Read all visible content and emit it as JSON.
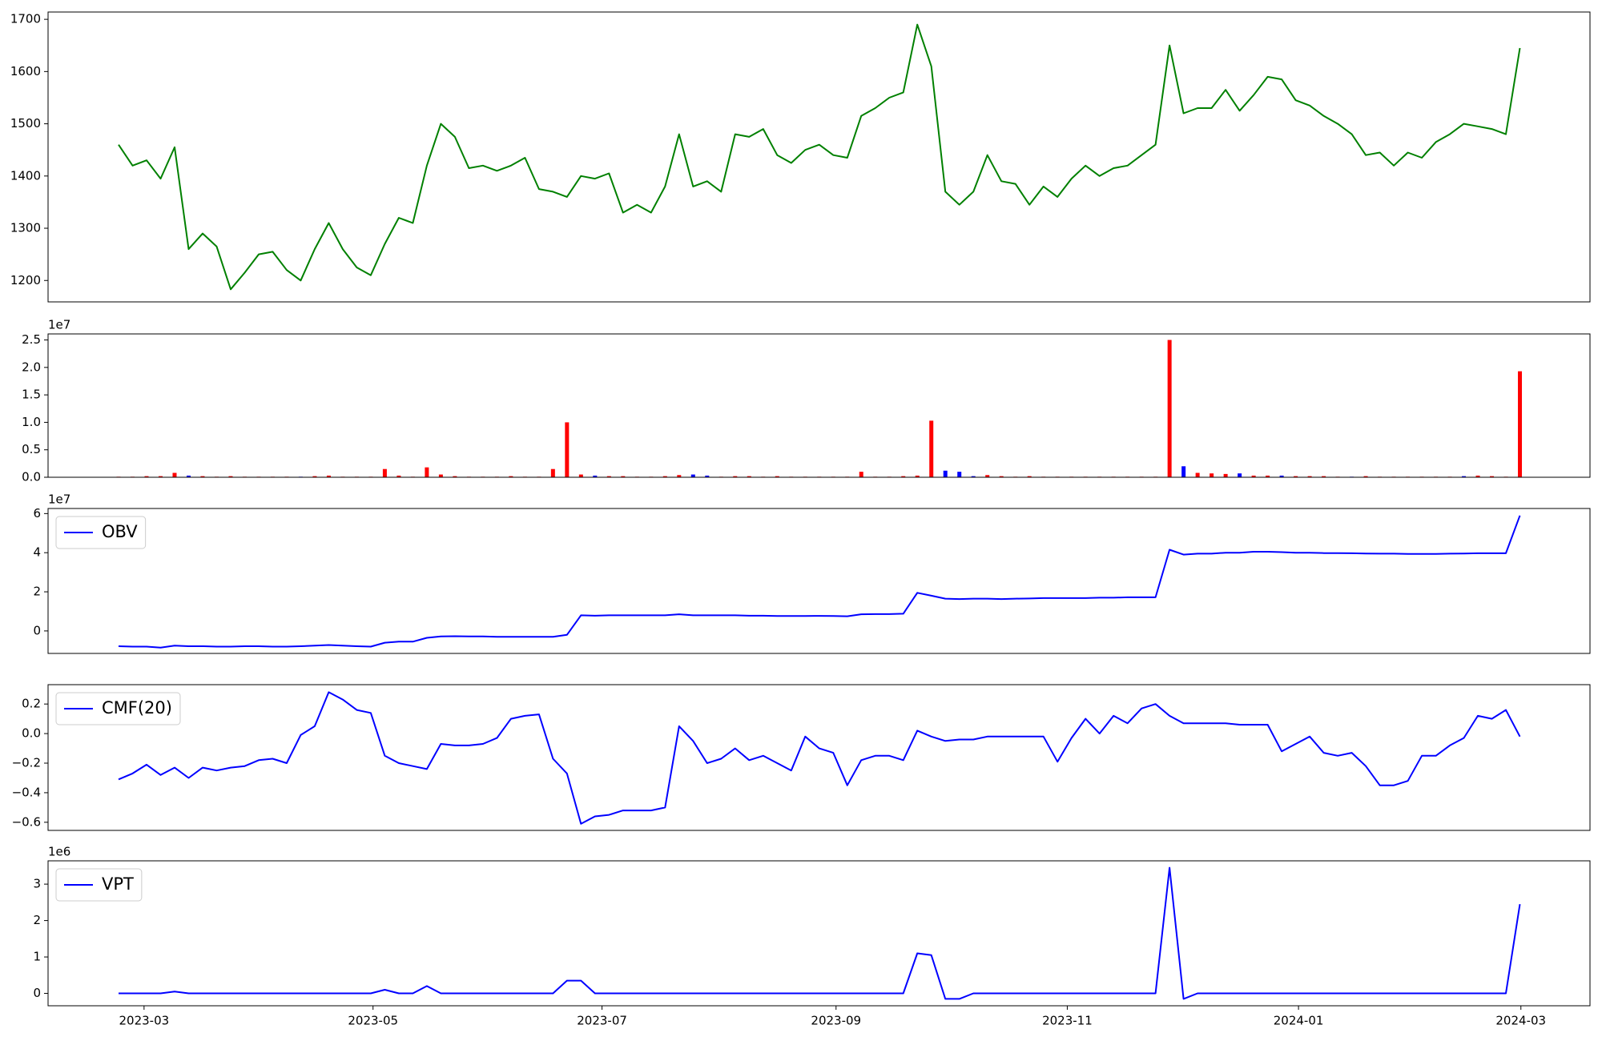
{
  "chart_data": [
    {
      "type": "line",
      "xlim": [
        -5.03,
        105.0
      ],
      "ylim": [
        1159,
        1714
      ],
      "yticks": [
        1200,
        1300,
        1400,
        1500,
        1600,
        1700
      ],
      "series": [
        {
          "color": "#008000",
          "values": [
            1460,
            1420,
            1430,
            1395,
            1455,
            1260,
            1290,
            1265,
            1183,
            1215,
            1250,
            1255,
            1220,
            1200,
            1260,
            1310,
            1260,
            1225,
            1210,
            1270,
            1320,
            1310,
            1420,
            1500,
            1475,
            1415,
            1420,
            1410,
            1420,
            1435,
            1375,
            1370,
            1360,
            1400,
            1395,
            1405,
            1330,
            1345,
            1330,
            1380,
            1480,
            1380,
            1390,
            1370,
            1480,
            1475,
            1490,
            1440,
            1425,
            1450,
            1460,
            1440,
            1435,
            1515,
            1530,
            1550,
            1560,
            1690,
            1610,
            1370,
            1345,
            1370,
            1440,
            1390,
            1385,
            1345,
            1380,
            1360,
            1395,
            1420,
            1400,
            1415,
            1420,
            1440,
            1460,
            1650,
            1520,
            1530,
            1530,
            1565,
            1525,
            1555,
            1590,
            1585,
            1545,
            1535,
            1515,
            1500,
            1480,
            1440,
            1445,
            1420,
            1445,
            1435,
            1465,
            1480,
            1500,
            1495,
            1490,
            1480,
            1645
          ]
        }
      ]
    },
    {
      "type": "bar",
      "xlim": [
        -5.03,
        105.0
      ],
      "ylim": [
        0,
        2.61
      ],
      "offset_label": "1e7",
      "yticks": [
        {
          "value": 0,
          "label": "0.0"
        },
        {
          "value": 0.5,
          "label": "0.5"
        },
        {
          "value": 1,
          "label": "1.0"
        },
        {
          "value": 1.5,
          "label": "1.5"
        },
        {
          "value": 2,
          "label": "2.0"
        },
        {
          "value": 2.5,
          "label": "2.5"
        }
      ],
      "values": [
        0.01,
        0.01,
        0.02,
        0.02,
        0.08,
        0.03,
        0.02,
        0.01,
        0.02,
        0.01,
        0.01,
        0.01,
        0.01,
        0.01,
        0.02,
        0.03,
        0.01,
        0.01,
        0.01,
        0.15,
        0.03,
        0.01,
        0.18,
        0.05,
        0.02,
        0.01,
        0.01,
        0.01,
        0.02,
        0.01,
        0.01,
        0.15,
        1.0,
        0.05,
        0.03,
        0.02,
        0.02,
        0.01,
        0.01,
        0.02,
        0.04,
        0.05,
        0.03,
        0.01,
        0.02,
        0.02,
        0.01,
        0.02,
        0.01,
        0.01,
        0.01,
        0.01,
        0.01,
        0.1,
        0.01,
        0.01,
        0.02,
        0.03,
        1.03,
        0.12,
        0.1,
        0.02,
        0.04,
        0.02,
        0.01,
        0.02,
        0.01,
        0.01,
        0.01,
        0.01,
        0.01,
        0.01,
        0.01,
        0.01,
        0.01,
        2.5,
        0.2,
        0.08,
        0.07,
        0.06,
        0.07,
        0.03,
        0.03,
        0.03,
        0.02,
        0.02,
        0.02,
        0.01,
        0.01,
        0.02,
        0.01,
        0.01,
        0.01,
        0.01,
        0.01,
        0.01,
        0.02,
        0.03,
        0.02,
        0.01,
        1.93
      ],
      "colors": [
        "red",
        "red",
        "red",
        "red",
        "red",
        "blue",
        "red",
        "red",
        "red",
        "red",
        "red",
        "red",
        "red",
        "blue",
        "red",
        "red",
        "red",
        "red",
        "red",
        "red",
        "red",
        "red",
        "red",
        "red",
        "red",
        "red",
        "red",
        "red",
        "red",
        "red",
        "red",
        "red",
        "red",
        "red",
        "blue",
        "red",
        "red",
        "red",
        "red",
        "red",
        "red",
        "blue",
        "blue",
        "red",
        "red",
        "red",
        "red",
        "red",
        "red",
        "red",
        "red",
        "red",
        "red",
        "red",
        "red",
        "red",
        "red",
        "red",
        "red",
        "blue",
        "blue",
        "blue",
        "red",
        "red",
        "red",
        "red",
        "red",
        "red",
        "red",
        "red",
        "red",
        "red",
        "red",
        "red",
        "red",
        "red",
        "blue",
        "red",
        "red",
        "red",
        "blue",
        "red",
        "red",
        "blue",
        "red",
        "red",
        "red",
        "red",
        "blue",
        "red",
        "red",
        "red",
        "red",
        "red",
        "red",
        "red",
        "blue",
        "red",
        "red",
        "red",
        "red"
      ]
    },
    {
      "type": "line",
      "xlim": [
        -5.03,
        105.0
      ],
      "ylim": [
        -1.15,
        6.26
      ],
      "offset_label": "1e7",
      "yticks": [
        0,
        2,
        4,
        6
      ],
      "series": [
        {
          "name": "OBV",
          "color": "#0000ff",
          "values": [
            -0.78,
            -0.8,
            -0.8,
            -0.85,
            -0.75,
            -0.78,
            -0.78,
            -0.8,
            -0.8,
            -0.78,
            -0.78,
            -0.8,
            -0.8,
            -0.78,
            -0.75,
            -0.72,
            -0.75,
            -0.78,
            -0.8,
            -0.6,
            -0.55,
            -0.55,
            -0.35,
            -0.28,
            -0.27,
            -0.28,
            -0.28,
            -0.3,
            -0.3,
            -0.3,
            -0.3,
            -0.3,
            -0.2,
            0.8,
            0.78,
            0.8,
            0.8,
            0.8,
            0.8,
            0.8,
            0.85,
            0.8,
            0.8,
            0.8,
            0.8,
            0.78,
            0.78,
            0.76,
            0.76,
            0.76,
            0.77,
            0.76,
            0.75,
            0.85,
            0.86,
            0.86,
            0.88,
            1.95,
            1.8,
            1.65,
            1.63,
            1.65,
            1.65,
            1.63,
            1.65,
            1.66,
            1.68,
            1.68,
            1.68,
            1.68,
            1.7,
            1.7,
            1.72,
            1.72,
            1.72,
            4.15,
            3.9,
            3.95,
            3.95,
            4.0,
            4.0,
            4.05,
            4.05,
            4.03,
            4.0,
            4.0,
            3.98,
            3.98,
            3.97,
            3.96,
            3.95,
            3.95,
            3.94,
            3.94,
            3.94,
            3.95,
            3.96,
            3.97,
            3.97,
            3.97,
            5.9
          ]
        }
      ]
    },
    {
      "type": "line",
      "xlim": [
        -5.03,
        105.0
      ],
      "ylim": [
        -0.655,
        0.331
      ],
      "yticks": [
        {
          "value": -0.6,
          "label": "−0.6"
        },
        {
          "value": -0.4,
          "label": "−0.4"
        },
        {
          "value": -0.2,
          "label": "−0.2"
        },
        {
          "value": 0,
          "label": "0.0"
        },
        0.2
      ],
      "series": [
        {
          "name": "CMF(20)",
          "color": "#0000ff",
          "values": [
            -0.31,
            -0.27,
            -0.21,
            -0.28,
            -0.23,
            -0.3,
            -0.23,
            -0.25,
            -0.23,
            -0.22,
            -0.18,
            -0.17,
            -0.2,
            -0.01,
            0.05,
            0.28,
            0.23,
            0.16,
            0.14,
            -0.15,
            -0.2,
            -0.22,
            -0.24,
            -0.07,
            -0.08,
            -0.08,
            -0.07,
            -0.03,
            0.1,
            0.12,
            0.13,
            -0.17,
            -0.27,
            -0.61,
            -0.56,
            -0.55,
            -0.52,
            -0.52,
            -0.52,
            -0.5,
            0.05,
            -0.05,
            -0.2,
            -0.17,
            -0.1,
            -0.18,
            -0.15,
            -0.2,
            -0.25,
            -0.02,
            -0.1,
            -0.13,
            -0.35,
            -0.18,
            -0.15,
            -0.15,
            -0.18,
            0.02,
            -0.02,
            -0.05,
            -0.04,
            -0.04,
            -0.02,
            -0.02,
            -0.02,
            -0.02,
            -0.02,
            -0.19,
            -0.03,
            0.1,
            0.0,
            0.12,
            0.07,
            0.17,
            0.2,
            0.12,
            0.07,
            0.07,
            0.07,
            0.07,
            0.06,
            0.06,
            0.06,
            -0.12,
            -0.07,
            -0.02,
            -0.13,
            -0.15,
            -0.13,
            -0.22,
            -0.35,
            -0.35,
            -0.32,
            -0.15,
            -0.15,
            -0.08,
            -0.03,
            0.12,
            0.1,
            0.16,
            -0.02
          ]
        }
      ]
    },
    {
      "type": "line",
      "xlim": [
        -5.03,
        105.0
      ],
      "ylim": [
        -0.34,
        3.64
      ],
      "offset_label": "1e6",
      "yticks": [
        0,
        1,
        2,
        3
      ],
      "xticks": [
        {
          "value": 1.82,
          "label": "2023-03"
        },
        {
          "value": 18.16,
          "label": "2023-05"
        },
        {
          "value": 34.5,
          "label": "2023-07"
        },
        {
          "value": 51.2,
          "label": "2023-09"
        },
        {
          "value": 67.7,
          "label": "2023-11"
        },
        {
          "value": 84.2,
          "label": "2024-01"
        },
        {
          "value": 100.07,
          "label": "2024-03"
        }
      ],
      "series": [
        {
          "name": "VPT",
          "color": "#0000ff",
          "values": [
            0,
            0,
            0,
            0,
            0.05,
            0,
            0,
            0,
            0,
            0,
            0,
            0,
            0,
            0,
            0,
            0,
            0,
            0,
            0,
            0.1,
            0,
            0,
            0.2,
            0,
            0,
            0,
            0,
            0,
            0,
            0,
            0,
            0,
            0.35,
            0.35,
            0,
            0,
            0,
            0,
            0,
            0,
            0,
            0,
            0,
            0,
            0,
            0,
            0,
            0,
            0,
            0,
            0,
            0,
            0,
            0,
            0,
            0,
            0,
            1.1,
            1.05,
            -0.15,
            -0.15,
            0,
            0,
            0,
            0,
            0,
            0,
            0,
            0,
            0,
            0,
            0,
            0,
            0,
            0,
            3.45,
            -0.15,
            0,
            0,
            0,
            0,
            0,
            0,
            0,
            0,
            0,
            0,
            0,
            0,
            0,
            0,
            0,
            0,
            0,
            0,
            0,
            0,
            0,
            0,
            0,
            2.45
          ]
        }
      ]
    }
  ]
}
